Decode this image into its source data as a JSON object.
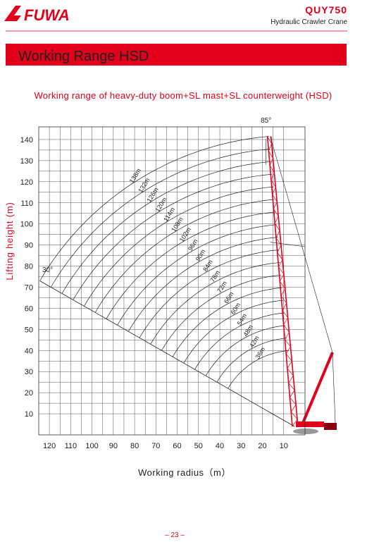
{
  "header": {
    "brand": "FUWA",
    "model": "QUY750",
    "product": "Hydraulic Crawler Crane"
  },
  "banner": "Working Range HSD",
  "chart_data": {
    "type": "working-range",
    "title": "Working range of heavy-duty boom+SL mast+SL counterweight (HSD)",
    "xlabel": "Working radius（m）",
    "ylabel": "Lifting height (m)",
    "xlim": [
      125,
      0
    ],
    "ylim": [
      0,
      146
    ],
    "xticks": [
      120,
      110,
      100,
      90,
      80,
      70,
      60,
      50,
      40,
      30,
      20,
      10
    ],
    "yticks": [
      10,
      20,
      30,
      40,
      50,
      60,
      70,
      80,
      90,
      100,
      110,
      120,
      130,
      140
    ],
    "boom_lengths": [
      {
        "value": 36,
        "label": "36m"
      },
      {
        "value": 42,
        "label": "42m"
      },
      {
        "value": 48,
        "label": "48m"
      },
      {
        "value": 54,
        "label": "54m"
      },
      {
        "value": 60,
        "label": "60m"
      },
      {
        "value": 66,
        "label": "66m"
      },
      {
        "value": 72,
        "label": "72m"
      },
      {
        "value": 78,
        "label": "78m"
      },
      {
        "value": 84,
        "label": "84m"
      },
      {
        "value": 90,
        "label": "90m"
      },
      {
        "value": 96,
        "label": "96m"
      },
      {
        "value": 102,
        "label": "102m"
      },
      {
        "value": 108,
        "label": "108m"
      },
      {
        "value": 114,
        "label": "114m"
      },
      {
        "value": 120,
        "label": "120m"
      },
      {
        "value": 126,
        "label": "126m"
      },
      {
        "value": 132,
        "label": "132m"
      },
      {
        "value": 138,
        "label": "138m"
      }
    ],
    "angles": [
      {
        "value": 85,
        "label": "85°"
      },
      {
        "value": 30,
        "label": "30°"
      }
    ],
    "grid": true,
    "color": "#e3001b"
  },
  "footer": {
    "page": "– 23 –"
  }
}
